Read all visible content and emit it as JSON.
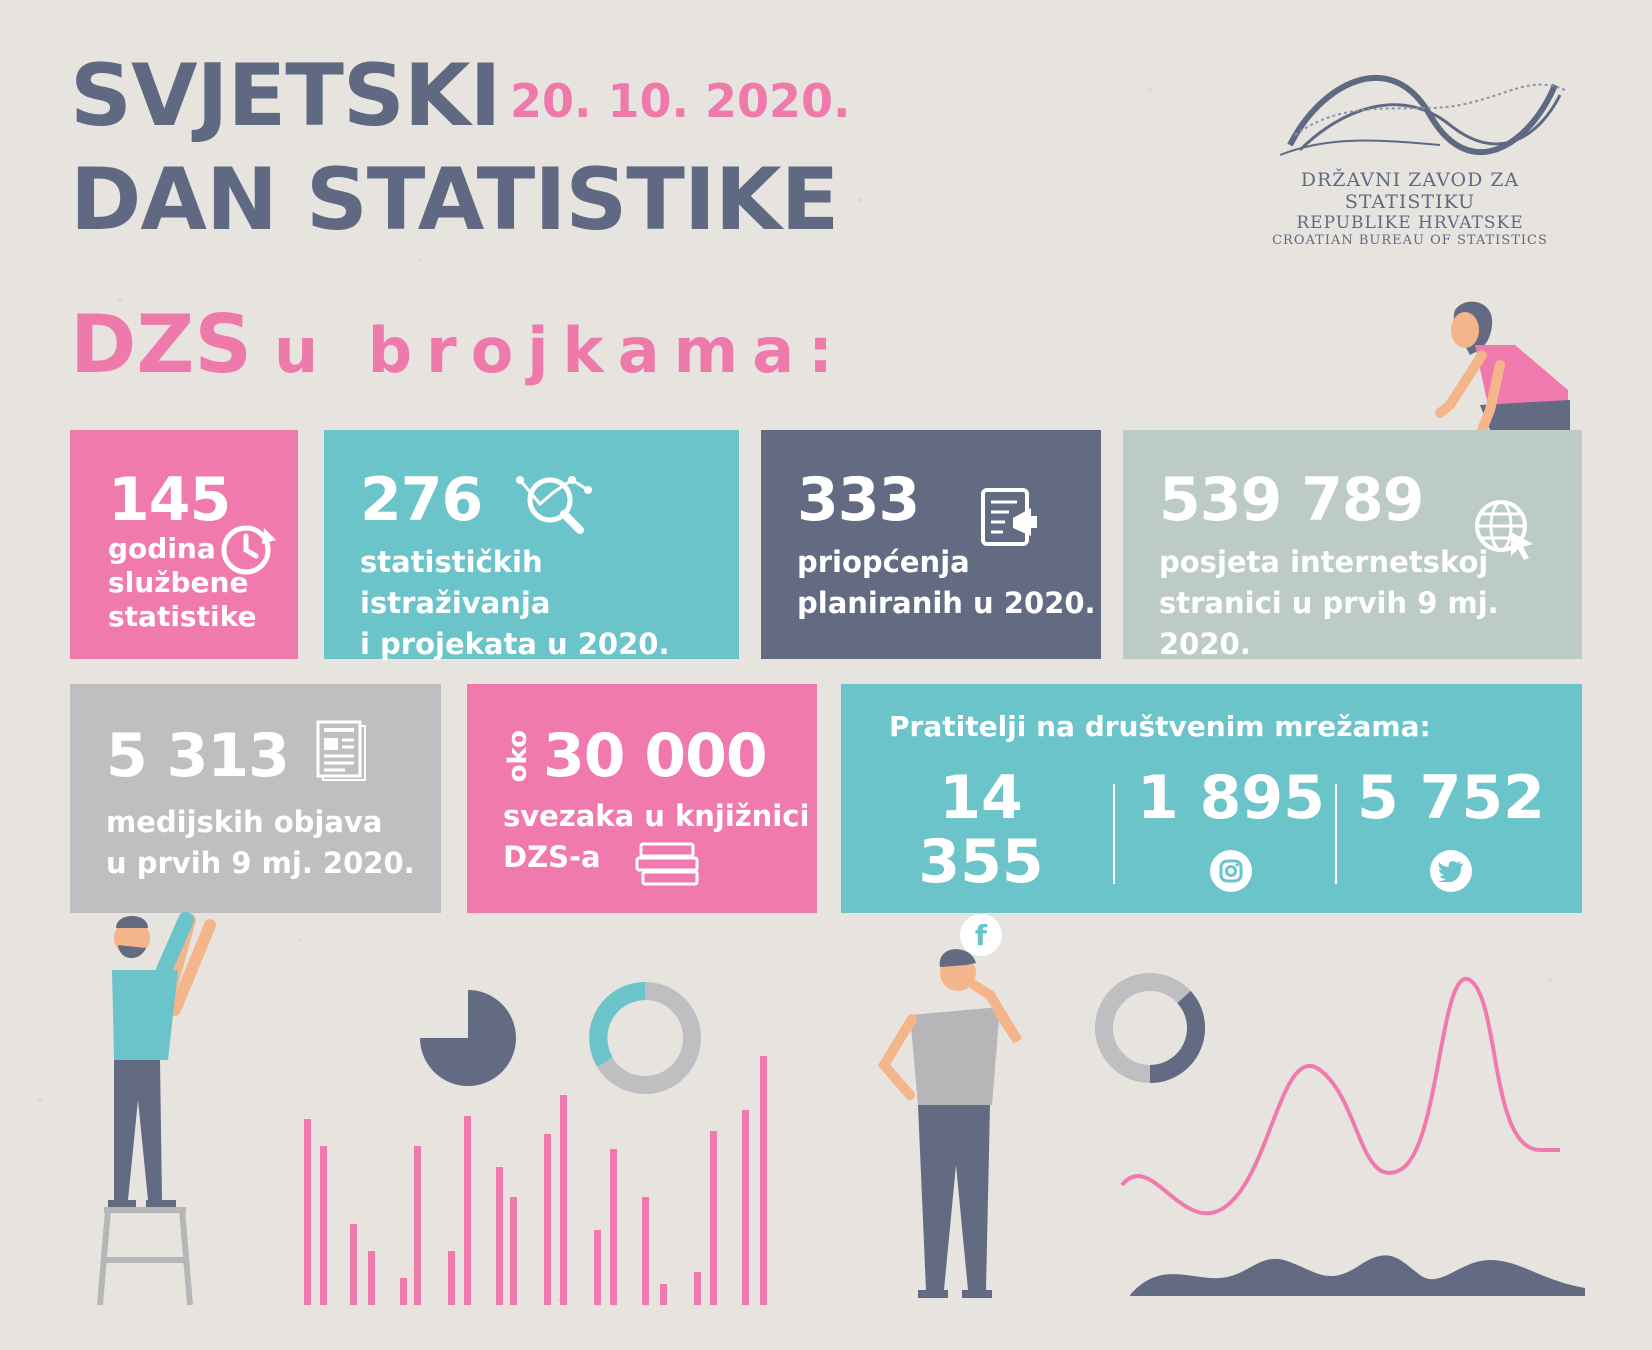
{
  "header": {
    "title_line1": "SVJETSKI",
    "title_line2": "DAN STATISTIKE",
    "date": "20. 10. 2020."
  },
  "logo": {
    "line1": "DRŽAVNI ZAVOD ZA STATISTIKU",
    "line2": "REPUBLIKE HRVATSKE",
    "line3": "CROATIAN BUREAU OF STATISTICS"
  },
  "subtitle": {
    "dzs": "DZS",
    "rest": "u brojkama:"
  },
  "stats": {
    "years": {
      "value": "145",
      "label_lines": [
        "godina",
        "službene",
        "statistike"
      ],
      "icon": "clock-refresh-icon"
    },
    "surveys": {
      "value": "276",
      "label_lines": [
        "statističkih istraživanja",
        "i projekata u 2020."
      ],
      "icon": "magnifier-chart-icon"
    },
    "releases": {
      "value": "333",
      "label_lines": [
        "priopćenja",
        "planiranih u 2020."
      ],
      "icon": "document-megaphone-icon"
    },
    "visits": {
      "value": "539 789",
      "label_lines": [
        "posjeta internetskoj",
        "stranici u prvih 9 mj. 2020."
      ],
      "icon": "globe-cursor-icon"
    },
    "media": {
      "value": "5 313",
      "label_lines": [
        "medijskih objava",
        "u prvih 9 mj. 2020."
      ],
      "icon": "newspaper-icon"
    },
    "library": {
      "prefix": "oko",
      "value": "30 000",
      "label_lines": [
        "svezaka u knjižnici",
        "DZS-a"
      ],
      "icon": "books-icon"
    }
  },
  "social": {
    "heading": "Pratitelji na društvenim mrežama:",
    "items": [
      {
        "value": "14 355",
        "icon": "facebook-icon",
        "glyph": "f"
      },
      {
        "value": "1 895",
        "icon": "instagram-icon",
        "glyph": ""
      },
      {
        "value": "5 752",
        "icon": "twitter-icon",
        "glyph": ""
      }
    ]
  },
  "colors": {
    "pink": "#f07aae",
    "teal": "#6bc4c9",
    "slate": "#626b82",
    "sage": "#bccbc6",
    "grey": "#bfbfc1",
    "background": "#e7e4e0"
  },
  "decor": {
    "bar_chart_heights": [
      0.62,
      0.53,
      0.27,
      0.18,
      0.09,
      0.53,
      0.18,
      0.63,
      0.46,
      0.36,
      0.57,
      0.7,
      0.25,
      0.52,
      0.36,
      0.07,
      0.11,
      0.58,
      0.65,
      0.83
    ]
  }
}
